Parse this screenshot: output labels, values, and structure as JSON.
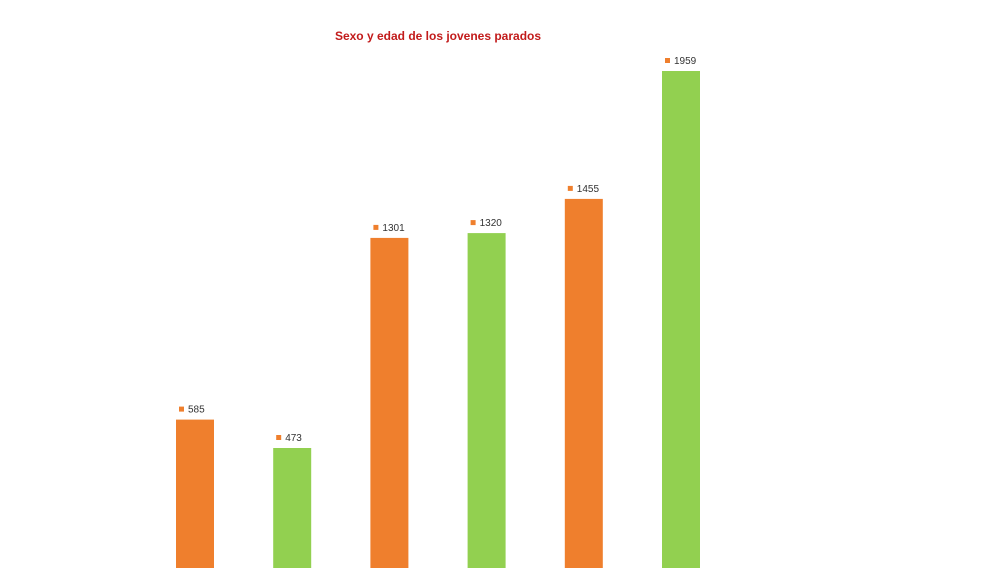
{
  "chart_data": {
    "type": "bar",
    "title": "Sexo y edad de los jovenes parados",
    "xlabel": "",
    "ylabel": "",
    "ylim": [
      0,
      1959
    ],
    "grid": false,
    "legend": "none",
    "values": [
      585,
      473,
      1301,
      1320,
      1455,
      1959
    ],
    "bar_colors": [
      "#ef7f2d",
      "#92d050",
      "#ef7f2d",
      "#92d050",
      "#ef7f2d",
      "#92d050"
    ],
    "label_marker_color": "#ef7f2d"
  }
}
